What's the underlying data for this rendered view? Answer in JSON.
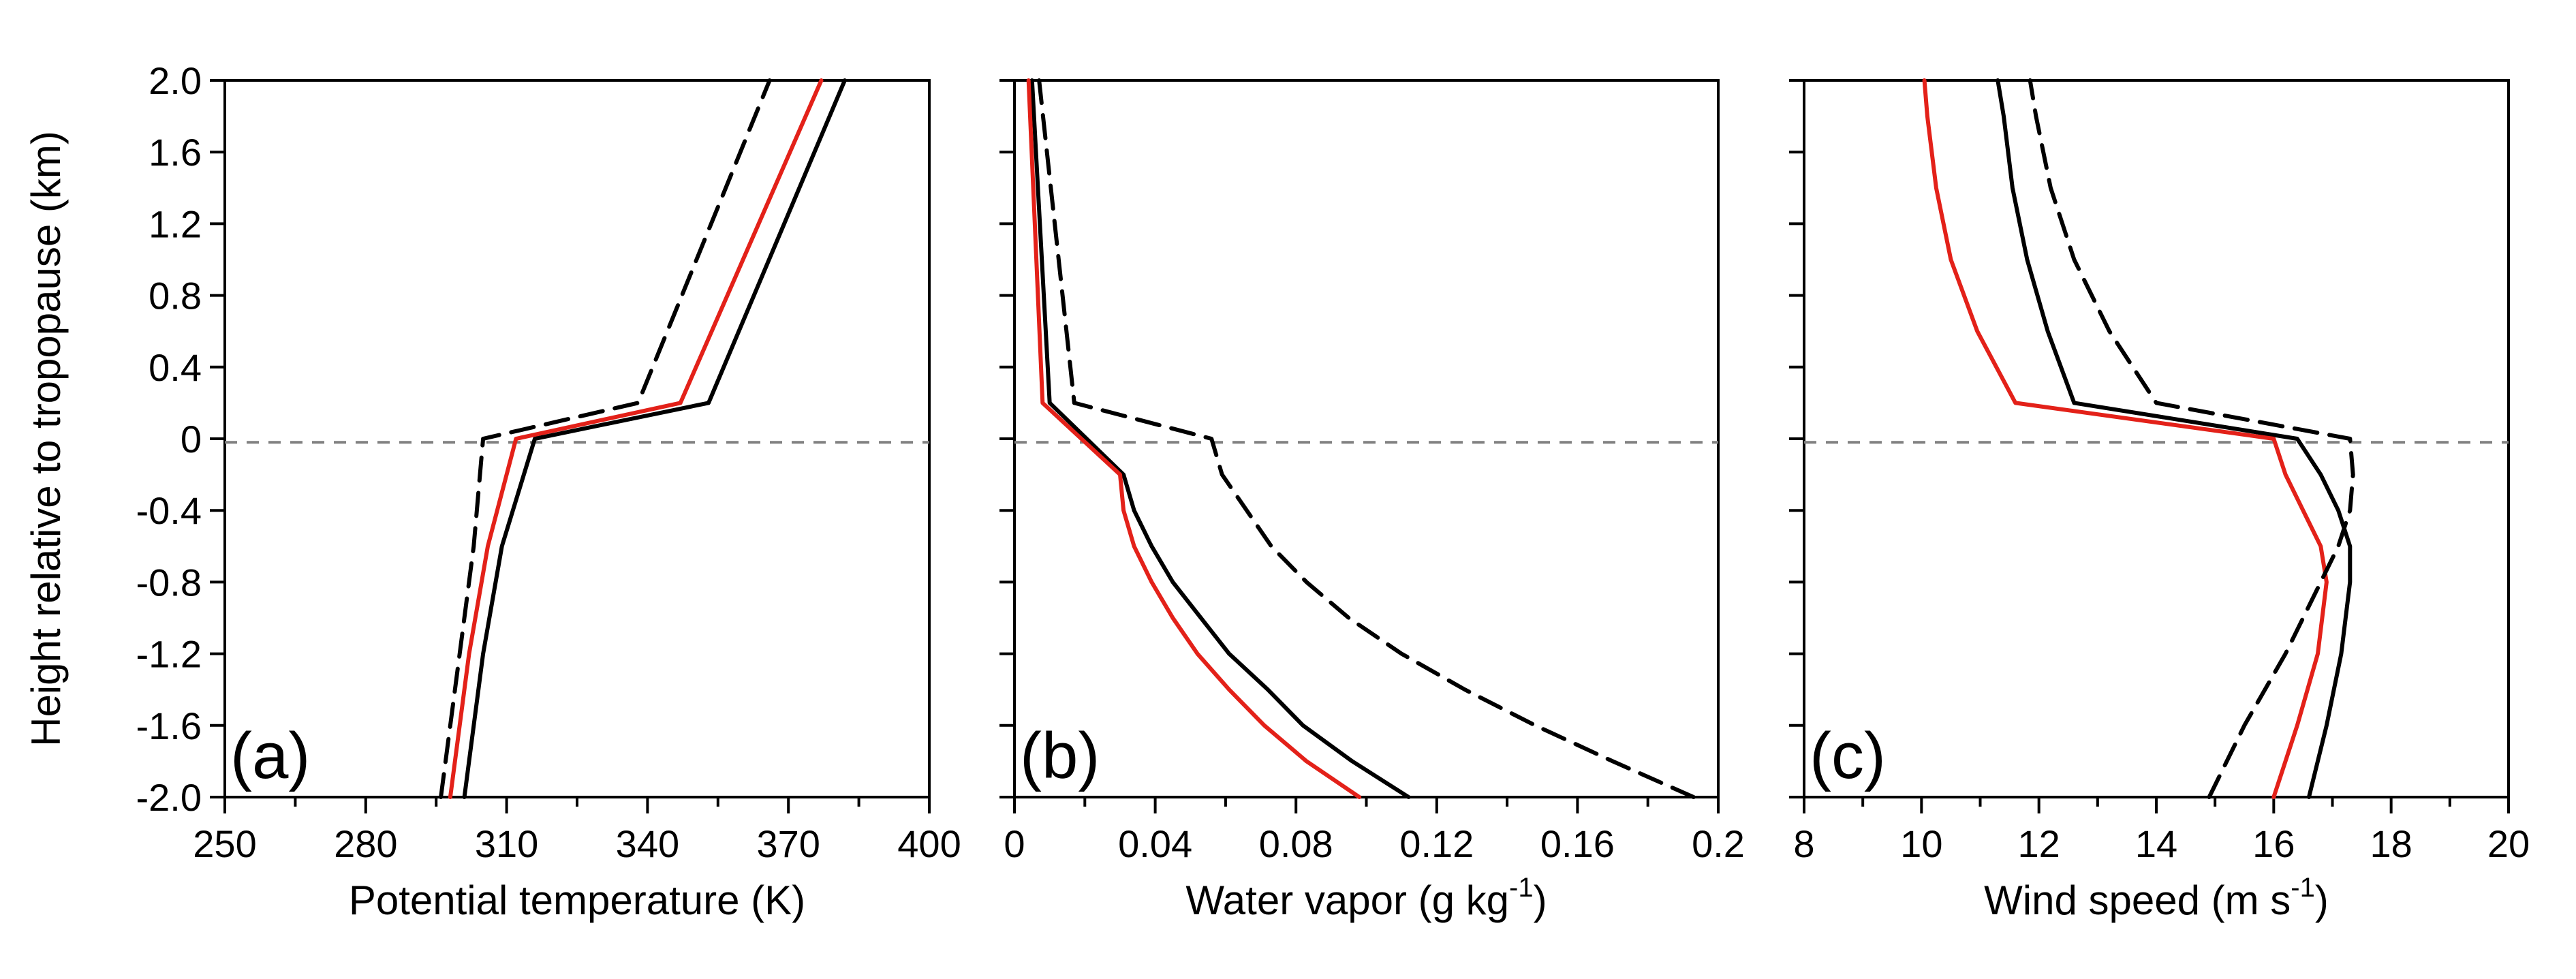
{
  "figure": {
    "ylabel": "Height relative to tropopause (km)",
    "yticks": [
      "2.0",
      "1.6",
      "1.2",
      "0.8",
      "0.4",
      "0",
      "-0.4",
      "-0.8",
      "-1.2",
      "-1.6",
      "-2.0"
    ],
    "ylim": [
      -2.0,
      2.0
    ],
    "tropopause_line_y": -0.02,
    "colors": {
      "red": "#e32119",
      "black": "#000000",
      "ref_line": "#808080"
    }
  },
  "chart_data": [
    {
      "type": "line",
      "panel": "(a)",
      "xlabel": "Potential temperature (K)",
      "xlim": [
        250,
        400
      ],
      "xticks": [
        "250",
        "280",
        "310",
        "340",
        "370",
        "400"
      ],
      "series": [
        {
          "name": "black solid",
          "style": "solid",
          "color": "#000000",
          "x": [
            301,
            305,
            309,
            316,
            353,
            382
          ],
          "y": [
            -2.0,
            -1.2,
            -0.6,
            0.0,
            0.2,
            2.0
          ]
        },
        {
          "name": "red",
          "style": "solid",
          "color": "#e32119",
          "x": [
            298,
            302,
            306,
            312,
            347,
            377
          ],
          "y": [
            -2.0,
            -1.2,
            -0.6,
            0.0,
            0.2,
            2.0
          ]
        },
        {
          "name": "black dashed",
          "style": "dashed",
          "color": "#000000",
          "x": [
            296,
            300,
            303,
            305,
            338,
            366
          ],
          "y": [
            -2.0,
            -1.2,
            -0.6,
            0.0,
            0.2,
            2.0
          ]
        }
      ]
    },
    {
      "type": "line",
      "panel": "(b)",
      "xlabel": "Water vapor (g kg",
      "xlabel_sup": "-1",
      "xlabel_end": ")",
      "xlim": [
        0,
        0.2
      ],
      "xticks": [
        "0",
        "0.04",
        "0.08",
        "0.12",
        "0.16",
        "0.2"
      ],
      "series": [
        {
          "name": "black solid",
          "style": "solid",
          "color": "#000000",
          "x": [
            0.112,
            0.096,
            0.082,
            0.072,
            0.061,
            0.053,
            0.045,
            0.039,
            0.034,
            0.031,
            0.01,
            0.005
          ],
          "y": [
            -2.0,
            -1.8,
            -1.6,
            -1.4,
            -1.2,
            -1.0,
            -0.8,
            -0.6,
            -0.4,
            -0.2,
            0.2,
            2.0
          ]
        },
        {
          "name": "red",
          "style": "solid",
          "color": "#e32119",
          "x": [
            0.098,
            0.083,
            0.071,
            0.061,
            0.052,
            0.045,
            0.039,
            0.034,
            0.031,
            0.03,
            0.008,
            0.004
          ],
          "y": [
            -2.0,
            -1.8,
            -1.6,
            -1.4,
            -1.2,
            -1.0,
            -0.8,
            -0.6,
            -0.4,
            -0.2,
            0.2,
            2.0
          ]
        },
        {
          "name": "black dashed",
          "style": "dashed",
          "color": "#000000",
          "x": [
            0.193,
            0.17,
            0.148,
            0.128,
            0.11,
            0.095,
            0.083,
            0.073,
            0.066,
            0.059,
            0.056,
            0.017,
            0.007
          ],
          "y": [
            -2.0,
            -1.8,
            -1.6,
            -1.4,
            -1.2,
            -1.0,
            -0.8,
            -0.6,
            -0.4,
            -0.2,
            0.0,
            0.2,
            2.0
          ]
        }
      ]
    },
    {
      "type": "line",
      "panel": "(c)",
      "xlabel": "Wind speed (m s",
      "xlabel_sup": "-1",
      "xlabel_end": ")",
      "xlim": [
        8,
        20
      ],
      "xticks": [
        "8",
        "10",
        "12",
        "14",
        "16",
        "18",
        "20"
      ],
      "series": [
        {
          "name": "black solid",
          "style": "solid",
          "color": "#000000",
          "x": [
            16.6,
            16.9,
            17.15,
            17.3,
            17.3,
            17.1,
            16.8,
            16.4,
            12.6,
            12.15,
            11.8,
            11.55,
            11.4,
            11.3
          ],
          "y": [
            -2.0,
            -1.6,
            -1.2,
            -0.8,
            -0.6,
            -0.4,
            -0.2,
            0.0,
            0.2,
            0.6,
            1.0,
            1.4,
            1.8,
            2.0
          ]
        },
        {
          "name": "red",
          "style": "solid",
          "color": "#e32119",
          "x": [
            16.0,
            16.4,
            16.75,
            16.9,
            16.8,
            16.5,
            16.2,
            16.0,
            11.6,
            10.95,
            10.5,
            10.25,
            10.1,
            10.05
          ],
          "y": [
            -2.0,
            -1.6,
            -1.2,
            -0.8,
            -0.6,
            -0.4,
            -0.2,
            0.0,
            0.2,
            0.6,
            1.0,
            1.4,
            1.8,
            2.0
          ]
        },
        {
          "name": "black dashed",
          "style": "dashed",
          "color": "#000000",
          "x": [
            14.9,
            15.5,
            16.2,
            16.8,
            17.1,
            17.3,
            17.35,
            17.3,
            14.0,
            13.2,
            12.6,
            12.2,
            11.95,
            11.85
          ],
          "y": [
            -2.0,
            -1.6,
            -1.2,
            -0.8,
            -0.6,
            -0.4,
            -0.2,
            0.0,
            0.2,
            0.6,
            1.0,
            1.4,
            1.8,
            2.0
          ]
        }
      ]
    }
  ]
}
